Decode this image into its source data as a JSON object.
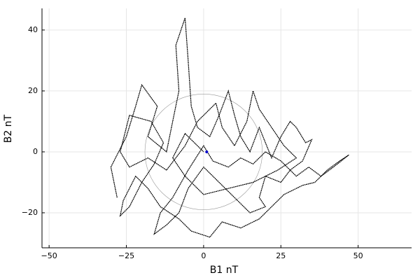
{
  "chart_data": {
    "type": "line",
    "xlabel": "B1 nT",
    "ylabel": "B2 nT",
    "xlim": [
      -52.3,
      67.3
    ],
    "ylim": [
      -31.5,
      47.1
    ],
    "xticks": [
      {
        "value": -50,
        "label": "−50"
      },
      {
        "value": -25,
        "label": "−25"
      },
      0,
      25,
      50
    ],
    "yticks": [
      {
        "value": -20,
        "label": "−20"
      },
      0,
      20,
      40
    ],
    "grid": true,
    "reference_circle": {
      "center": [
        0,
        0
      ],
      "radius": 19,
      "color": "#999999"
    },
    "origin_marker": {
      "x": 1,
      "y": 0,
      "color": "#0000cc"
    },
    "series": [
      {
        "color": "#000000",
        "x": [
          -28,
          -30,
          -25,
          -22,
          -20,
          -15,
          -18,
          -12,
          -10,
          -8,
          -9,
          -6,
          -5,
          -4,
          -2,
          2,
          5,
          8,
          10,
          12,
          15,
          18,
          20,
          22,
          25,
          28,
          30,
          33,
          35,
          32,
          28,
          25,
          20,
          18,
          20,
          15,
          10,
          5,
          0,
          -5,
          -8,
          -12,
          -16,
          -14,
          -10,
          -5,
          0,
          3,
          8,
          12,
          16,
          20,
          25,
          30,
          34,
          38,
          42,
          47,
          44,
          40,
          36,
          32,
          26,
          22,
          18,
          12,
          6,
          2,
          -4,
          -8,
          -14,
          -18,
          -22,
          -26,
          -27,
          -24,
          -20,
          -16,
          -13,
          -17,
          -24,
          -27,
          -24,
          -18,
          -12,
          -6,
          -2,
          4,
          6,
          10,
          14,
          16,
          18,
          22,
          26,
          30,
          24,
          16,
          8,
          0,
          -6,
          -10,
          -6,
          0
        ],
        "y": [
          -15,
          -5,
          5,
          15,
          22,
          15,
          5,
          0,
          10,
          20,
          35,
          44,
          30,
          15,
          8,
          5,
          12,
          20,
          12,
          5,
          0,
          8,
          3,
          -2,
          5,
          10,
          8,
          3,
          4,
          -3,
          -6,
          -10,
          -8,
          -15,
          -18,
          -20,
          -15,
          -10,
          -5,
          -12,
          -20,
          -24,
          -27,
          -20,
          -15,
          -6,
          2,
          -3,
          -5,
          -2,
          -4,
          0,
          -3,
          -8,
          -5,
          -8,
          -5,
          -1,
          -3,
          -6,
          -10,
          -11,
          -14,
          -18,
          -22,
          -25,
          -23,
          -28,
          -26,
          -22,
          -18,
          -12,
          -8,
          -16,
          -21,
          -18,
          -10,
          -4,
          3,
          10,
          12,
          0,
          -5,
          -2,
          -6,
          2,
          10,
          16,
          8,
          2,
          10,
          20,
          14,
          8,
          2,
          -2,
          -6,
          -10,
          -12,
          -14,
          -8,
          -2,
          6,
          0
        ]
      }
    ]
  }
}
